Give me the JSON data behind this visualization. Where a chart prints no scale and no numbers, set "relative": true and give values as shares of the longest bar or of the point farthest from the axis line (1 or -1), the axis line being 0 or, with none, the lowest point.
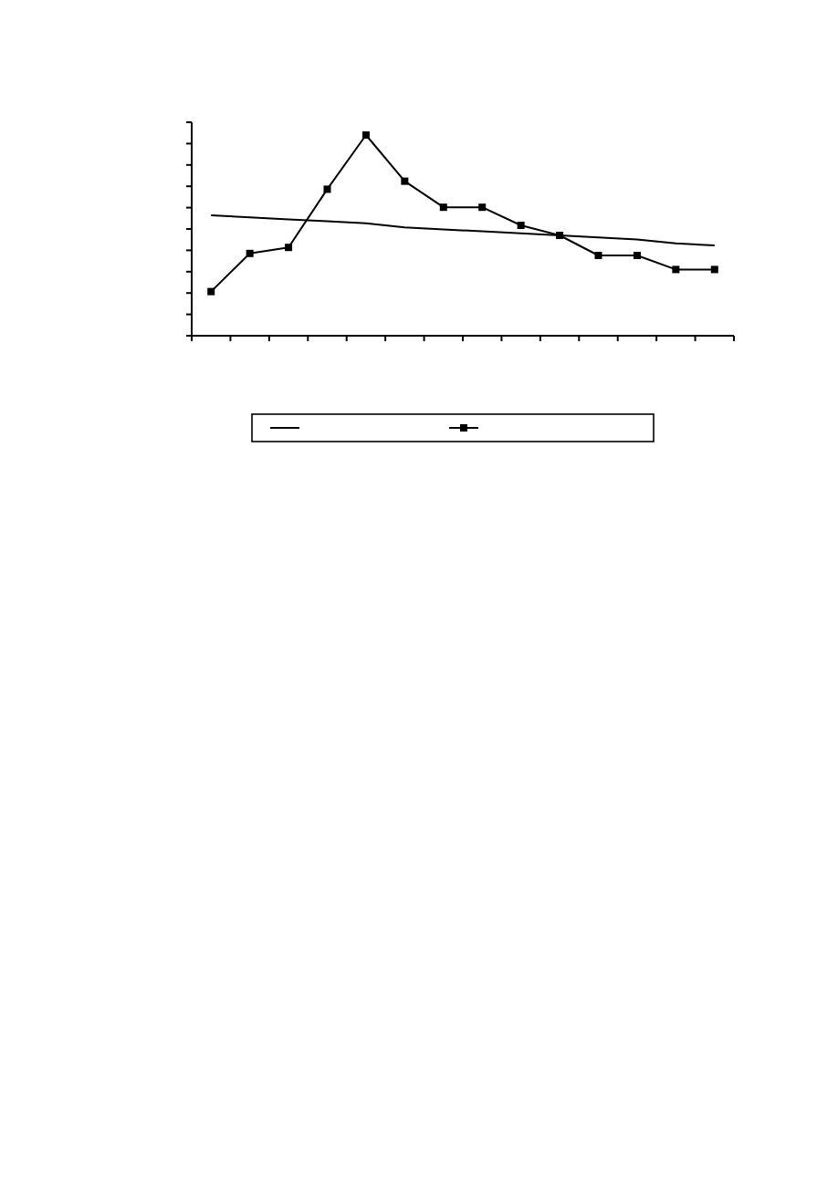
{
  "chart_data": {
    "type": "line",
    "relative": true,
    "grid": false,
    "categories": [
      null,
      null,
      null,
      null,
      null,
      null,
      null,
      null,
      null,
      null,
      null,
      null,
      null,
      null
    ],
    "series": [
      {
        "color": "#000000",
        "marker": "none",
        "values": [
          0.6,
          0.59,
          0.58,
          0.57,
          0.56,
          0.54,
          0.53,
          0.52,
          0.51,
          0.5,
          0.49,
          0.48,
          0.46,
          0.45
        ]
      },
      {
        "color": "#000000",
        "marker": "square",
        "values": [
          0.22,
          0.41,
          0.44,
          0.73,
          1,
          0.77,
          0.64,
          0.64,
          0.55,
          0.5,
          0.4,
          0.4,
          0.33,
          0.33
        ]
      }
    ]
  }
}
